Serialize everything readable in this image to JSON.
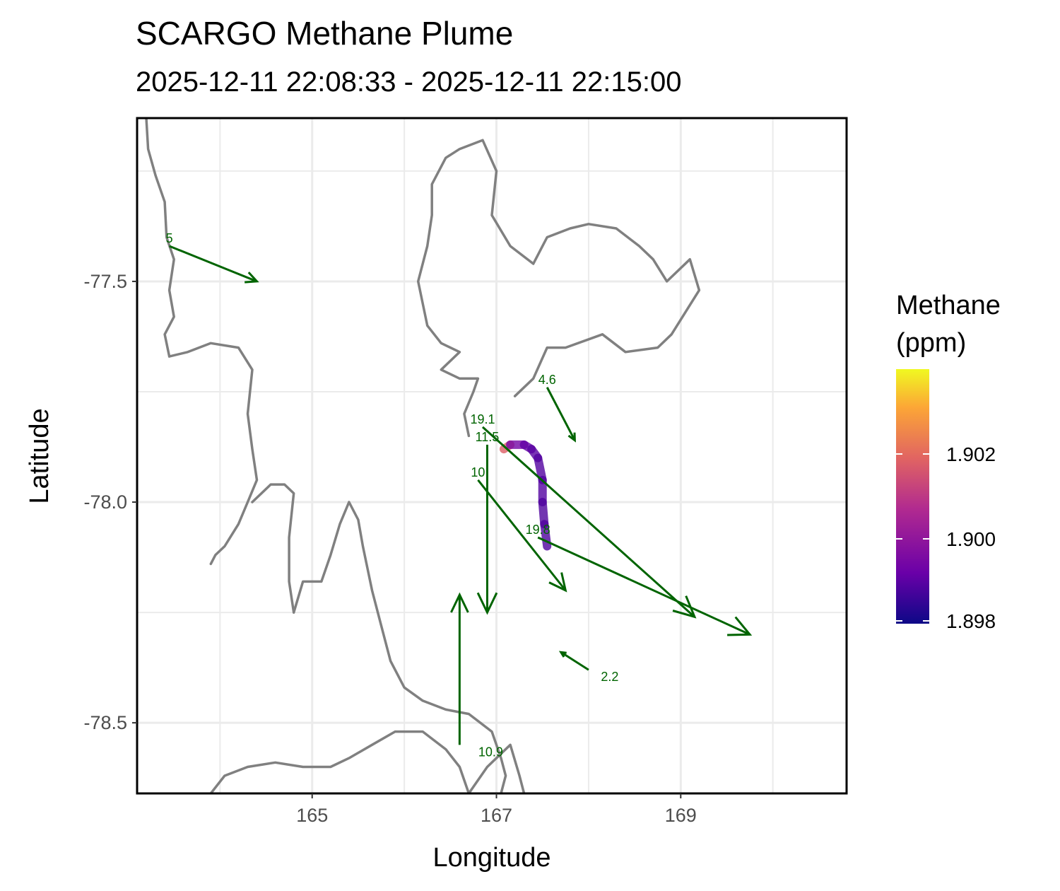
{
  "chart_data": {
    "type": "map",
    "title": "SCARGO Methane Plume",
    "subtitle": "2025-12-11 22:08:33 - 2025-12-11 22:15:00",
    "xlabel": "Longitude",
    "ylabel": "Latitude",
    "xlim": [
      163.1,
      170.8
    ],
    "ylim": [
      -78.66,
      -77.13
    ],
    "x_ticks": [
      165,
      167,
      169
    ],
    "y_ticks": [
      -77.5,
      -78.0,
      -78.5
    ],
    "grid": true,
    "legend": {
      "title_lines": [
        "Methane",
        "(ppm)"
      ],
      "position": "right",
      "range": [
        1.898,
        1.904
      ],
      "ticks": [
        1.898,
        1.9,
        1.902
      ],
      "tick_labels": [
        "1.898",
        "1.900",
        "1.902"
      ],
      "colors": [
        "#0d0887",
        "#6a00a8",
        "#b12a90",
        "#e16462",
        "#fca636",
        "#f0f921"
      ]
    },
    "colors": {
      "coastline": "#808080",
      "wind_arrow": "#006400",
      "grid": "#ebebeb"
    },
    "coastline": [
      [
        [
          163.2,
          -77.13
        ],
        [
          163.22,
          -77.2
        ],
        [
          163.3,
          -77.26
        ],
        [
          163.4,
          -77.32
        ],
        [
          163.42,
          -77.4
        ],
        [
          163.5,
          -77.45
        ],
        [
          163.45,
          -77.52
        ],
        [
          163.5,
          -77.58
        ],
        [
          163.4,
          -77.62
        ],
        [
          163.45,
          -77.67
        ],
        [
          163.65,
          -77.66
        ],
        [
          163.9,
          -77.64
        ],
        [
          164.2,
          -77.65
        ],
        [
          164.35,
          -77.7
        ],
        [
          164.3,
          -77.8
        ],
        [
          164.35,
          -77.88
        ],
        [
          164.4,
          -77.95
        ],
        [
          164.3,
          -78.0
        ],
        [
          164.2,
          -78.05
        ],
        [
          164.05,
          -78.1
        ],
        [
          163.95,
          -78.12
        ],
        [
          163.9,
          -78.14
        ]
      ],
      [
        [
          164.35,
          -78.0
        ],
        [
          164.55,
          -77.96
        ],
        [
          164.7,
          -77.96
        ],
        [
          164.8,
          -77.98
        ],
        [
          164.75,
          -78.08
        ],
        [
          164.75,
          -78.18
        ],
        [
          164.8,
          -78.25
        ]
      ],
      [
        [
          164.8,
          -78.25
        ],
        [
          164.9,
          -78.18
        ],
        [
          165.1,
          -78.18
        ],
        [
          165.2,
          -78.12
        ],
        [
          165.3,
          -78.05
        ],
        [
          165.4,
          -78.0
        ],
        [
          165.5,
          -78.04
        ],
        [
          165.55,
          -78.1
        ],
        [
          165.6,
          -78.15
        ],
        [
          165.65,
          -78.2
        ],
        [
          165.75,
          -78.28
        ],
        [
          165.85,
          -78.36
        ],
        [
          166.0,
          -78.42
        ],
        [
          166.2,
          -78.45
        ],
        [
          166.45,
          -78.47
        ],
        [
          166.7,
          -78.48
        ],
        [
          166.95,
          -78.52
        ],
        [
          167.05,
          -78.58
        ],
        [
          167.1,
          -78.62
        ],
        [
          167.05,
          -78.66
        ]
      ],
      [
        [
          163.9,
          -78.66
        ],
        [
          164.05,
          -78.62
        ],
        [
          164.3,
          -78.6
        ],
        [
          164.6,
          -78.59
        ],
        [
          164.9,
          -78.6
        ],
        [
          165.2,
          -78.6
        ],
        [
          165.4,
          -78.58
        ],
        [
          165.65,
          -78.55
        ],
        [
          165.9,
          -78.52
        ],
        [
          166.2,
          -78.52
        ],
        [
          166.45,
          -78.56
        ],
        [
          166.6,
          -78.6
        ],
        [
          166.7,
          -78.66
        ]
      ],
      [
        [
          166.7,
          -78.66
        ],
        [
          166.9,
          -78.6
        ],
        [
          167.05,
          -78.57
        ],
        [
          167.15,
          -78.55
        ],
        [
          167.25,
          -78.62
        ],
        [
          167.3,
          -78.66
        ]
      ],
      [
        [
          166.7,
          -77.85
        ],
        [
          166.65,
          -77.8
        ],
        [
          166.75,
          -77.75
        ],
        [
          166.8,
          -77.72
        ],
        [
          166.6,
          -77.72
        ],
        [
          166.4,
          -77.7
        ],
        [
          166.6,
          -77.66
        ],
        [
          166.4,
          -77.64
        ],
        [
          166.25,
          -77.6
        ],
        [
          166.2,
          -77.55
        ],
        [
          166.15,
          -77.5
        ],
        [
          166.25,
          -77.42
        ],
        [
          166.3,
          -77.35
        ],
        [
          166.3,
          -77.28
        ],
        [
          166.45,
          -77.22
        ],
        [
          166.6,
          -77.2
        ],
        [
          166.85,
          -77.18
        ],
        [
          167.0,
          -77.25
        ],
        [
          166.95,
          -77.35
        ],
        [
          167.15,
          -77.42
        ],
        [
          167.4,
          -77.46
        ],
        [
          167.55,
          -77.4
        ],
        [
          167.8,
          -77.38
        ],
        [
          168.0,
          -77.37
        ],
        [
          168.3,
          -77.38
        ],
        [
          168.55,
          -77.42
        ],
        [
          168.7,
          -77.45
        ],
        [
          168.85,
          -77.5
        ],
        [
          169.1,
          -77.45
        ],
        [
          169.2,
          -77.52
        ],
        [
          168.9,
          -77.62
        ],
        [
          168.75,
          -77.65
        ],
        [
          168.4,
          -77.66
        ],
        [
          168.15,
          -77.62
        ],
        [
          167.75,
          -77.65
        ],
        [
          167.55,
          -77.65
        ],
        [
          167.4,
          -77.72
        ],
        [
          167.2,
          -77.76
        ]
      ]
    ],
    "track": [
      [
        167.08,
        -77.88
      ],
      [
        167.15,
        -77.87
      ],
      [
        167.3,
        -77.87
      ],
      [
        167.38,
        -77.88
      ],
      [
        167.45,
        -77.9
      ],
      [
        167.5,
        -77.95
      ],
      [
        167.5,
        -78.0
      ],
      [
        167.52,
        -78.05
      ],
      [
        167.55,
        -78.1
      ]
    ],
    "track_values": [
      1.9035,
      1.8995,
      1.8992,
      1.899,
      1.8989,
      1.8989,
      1.8989,
      1.8988,
      1.8989
    ],
    "wind_vectors": [
      {
        "lon": 163.45,
        "lat": -77.42,
        "dlon": 0.95,
        "dlat": -0.08,
        "label": "5"
      },
      {
        "lon": 167.55,
        "lat": -77.74,
        "dlon": 0.3,
        "dlat": -0.12,
        "label": "4.6"
      },
      {
        "lon": 166.85,
        "lat": -77.83,
        "dlon": 2.3,
        "dlat": -0.43,
        "label": "19.1"
      },
      {
        "lon": 166.9,
        "lat": -77.87,
        "dlon": 0.0,
        "dlat": -0.38,
        "label": "11.5"
      },
      {
        "lon": 166.8,
        "lat": -77.95,
        "dlon": 0.95,
        "dlat": -0.25,
        "label": "10"
      },
      {
        "lon": 167.45,
        "lat": -78.08,
        "dlon": 2.3,
        "dlat": -0.22,
        "label": "19.8"
      },
      {
        "lon": 168.0,
        "lat": -78.38,
        "dlon": -0.3,
        "dlat": 0.04,
        "label": "2.2"
      },
      {
        "lon": 166.6,
        "lat": -78.55,
        "dlon": 0.0,
        "dlat": 0.34,
        "label": "10.9"
      }
    ]
  }
}
